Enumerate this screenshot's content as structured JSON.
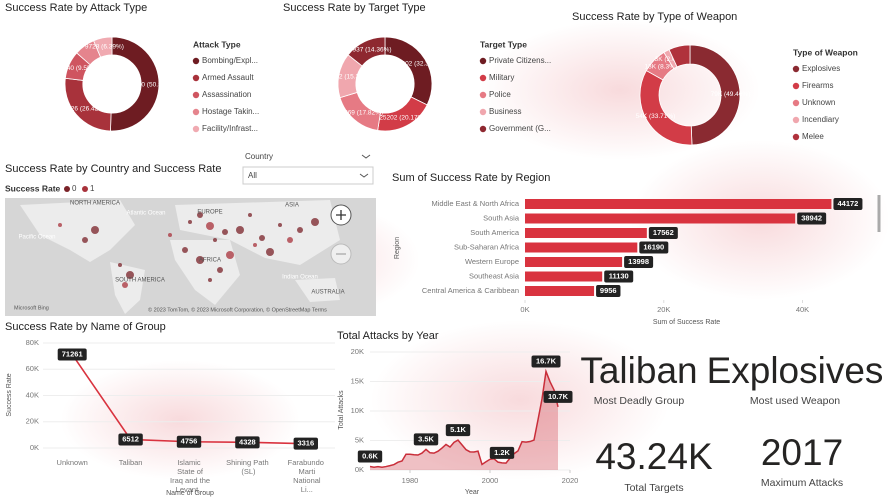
{
  "chart_data": [
    {
      "type": "donut",
      "title": "Success Rate by Attack Type",
      "legend_title": "Attack Type",
      "categories": [
        "Bombing/Expl...",
        "Armed Assault",
        "Assassination",
        "Hostage Takin...",
        "Facility/Infrast..."
      ],
      "values": [
        76920,
        40226,
        14540,
        10836,
        9728
      ],
      "value_labels": [
        "76920 (50.52%)",
        "40226 (26.42%)",
        "14540 (9.55%)",
        null,
        "9728 (6.39%)"
      ],
      "colors": [
        "#6e1c22",
        "#a8323b",
        "#cf5560",
        "#e5848d",
        "#f0aab1"
      ]
    },
    {
      "type": "donut",
      "title": "Success Rate by Target Type",
      "legend_title": "Target Type",
      "categories": [
        "Private Citizens...",
        "Military",
        "Police",
        "Business",
        "Government (G..."
      ],
      "values": [
        40402,
        25202,
        22269,
        19142,
        17937
      ],
      "value_labels": [
        "40402 (32.33%)",
        "25202 (20.17%)",
        "22269 (17.82%)",
        "19142 (15.32%)",
        "17937 (14.36%)"
      ],
      "colors": [
        "#6e1c22",
        "#d23c47",
        "#e67a84",
        "#f0a7ae",
        "#8e2830"
      ]
    },
    {
      "type": "donut",
      "title": "Success Rate by Type of Weapon",
      "legend_title": "Type of Weapon",
      "categories": [
        "Explosives",
        "Firearms",
        "Unknown",
        "Incendiary",
        "Melee"
      ],
      "values": [
        79000,
        54000,
        13000,
        3000,
        11000
      ],
      "value_labels": [
        "79K (49.46%)",
        "54K (33.71%)",
        "13K (8.3%)",
        "3K (2.05%)",
        null
      ],
      "colors": [
        "#8a2a31",
        "#d23c47",
        "#e67a84",
        "#f0a7ae",
        "#b0323c"
      ]
    },
    {
      "type": "hbar",
      "title": "Sum of Success Rate by Region",
      "x_label": "Sum of Success Rate",
      "y_label": "Region",
      "categories": [
        "Middle East & North Africa",
        "South Asia",
        "South America",
        "Sub-Saharan Africa",
        "Western Europe",
        "Southeast Asia",
        "Central America & Caribbean"
      ],
      "values": [
        44172,
        38942,
        17562,
        16190,
        13998,
        11130,
        9956
      ],
      "color": "#d9333f",
      "xlim": [
        0,
        48000
      ],
      "xticks": [
        {
          "value": 0,
          "label": "0K"
        },
        {
          "value": 20000,
          "label": "20K"
        },
        {
          "value": 40000,
          "label": "40K"
        }
      ]
    },
    {
      "type": "line",
      "title": "Success Rate by Name of Group",
      "x_label": "Name of Group",
      "y_label": "Success Rate",
      "categories": [
        "Unknown",
        "Taliban",
        "Islamic State of Iraq and the Levant...",
        "Shining Path (SL)",
        "Farabundo Marti National Li..."
      ],
      "values": [
        71261,
        6512,
        4756,
        4328,
        3316
      ],
      "color": "#d9333f",
      "ylim": [
        0,
        80000
      ],
      "yticks": [
        {
          "value": 0,
          "label": "0K"
        },
        {
          "value": 20000,
          "label": "20K"
        },
        {
          "value": 40000,
          "label": "40K"
        },
        {
          "value": 60000,
          "label": "60K"
        },
        {
          "value": 80000,
          "label": "80K"
        }
      ]
    },
    {
      "type": "area",
      "title": "Total Attacks by Year",
      "x_label": "Year",
      "y_label": "Total Attacks",
      "x": [
        1970,
        1971,
        1972,
        1973,
        1974,
        1975,
        1976,
        1977,
        1978,
        1979,
        1980,
        1981,
        1982,
        1983,
        1984,
        1985,
        1986,
        1987,
        1988,
        1989,
        1990,
        1991,
        1992,
        1994,
        1995,
        1996,
        1997,
        1998,
        1999,
        2000,
        2001,
        2002,
        2003,
        2004,
        2005,
        2006,
        2007,
        2008,
        2009,
        2010,
        2011,
        2012,
        2013,
        2014,
        2015,
        2016,
        2017
      ],
      "values": [
        600,
        471,
        568,
        473,
        581,
        740,
        923,
        1319,
        1526,
        2662,
        2662,
        2586,
        2544,
        2870,
        3495,
        2915,
        2860,
        3183,
        3721,
        4324,
        3887,
        4683,
        5071,
        3456,
        3081,
        3058,
        3197,
        934,
        1395,
        1814,
        1906,
        1333,
        1200,
        1166,
        2017,
        2758,
        3242,
        4805,
        4721,
        4826,
        5076,
        8522,
        12036,
        16700,
        14965,
        13587,
        10700
      ],
      "value_labels": [
        "0.6K",
        null,
        null,
        null,
        null,
        null,
        null,
        null,
        null,
        null,
        null,
        null,
        null,
        null,
        "3.5K",
        null,
        null,
        null,
        null,
        null,
        null,
        null,
        "5.1K",
        null,
        null,
        null,
        null,
        null,
        null,
        null,
        null,
        null,
        "1.2K",
        null,
        null,
        null,
        null,
        null,
        null,
        null,
        null,
        null,
        null,
        "16.7K",
        null,
        null,
        "10.7K"
      ],
      "color": "#c92e3a",
      "xlim": [
        1970,
        2020
      ],
      "xticks": [
        1980,
        2000,
        2020
      ],
      "ylim": [
        0,
        20000
      ],
      "yticks": [
        {
          "value": 0,
          "label": "0K"
        },
        {
          "value": 5000,
          "label": "5K"
        },
        {
          "value": 10000,
          "label": "10K"
        },
        {
          "value": 15000,
          "label": "15K"
        },
        {
          "value": 20000,
          "label": "20K"
        }
      ]
    }
  ],
  "map": {
    "title": "Success Rate by Country and Success Rate",
    "legend_title": "Success Rate",
    "legend": [
      "0",
      "1"
    ],
    "labels": [
      "NORTH AMERICA",
      "EUROPE",
      "ASIA",
      "Atlantic Ocean",
      "Pacific Ocean",
      "AFRICA",
      "Indian Ocean",
      "SOUTH AMERICA",
      "AUSTRALIA"
    ],
    "attribution": "© 2023 TomTom, © 2023 Microsoft Corporation, © OpenStreetMap  Terms",
    "logo": "Microsoft Bing"
  },
  "slicer": {
    "label": "Country",
    "value": "All"
  },
  "cards": [
    {
      "value": "Taliban",
      "caption": "Most Deadly Group"
    },
    {
      "value": "Explosives",
      "caption": "Most used Weapon"
    },
    {
      "value": "43.24K",
      "caption": "Total Targets"
    },
    {
      "value": "2017",
      "caption": "Maximum Attacks"
    }
  ]
}
